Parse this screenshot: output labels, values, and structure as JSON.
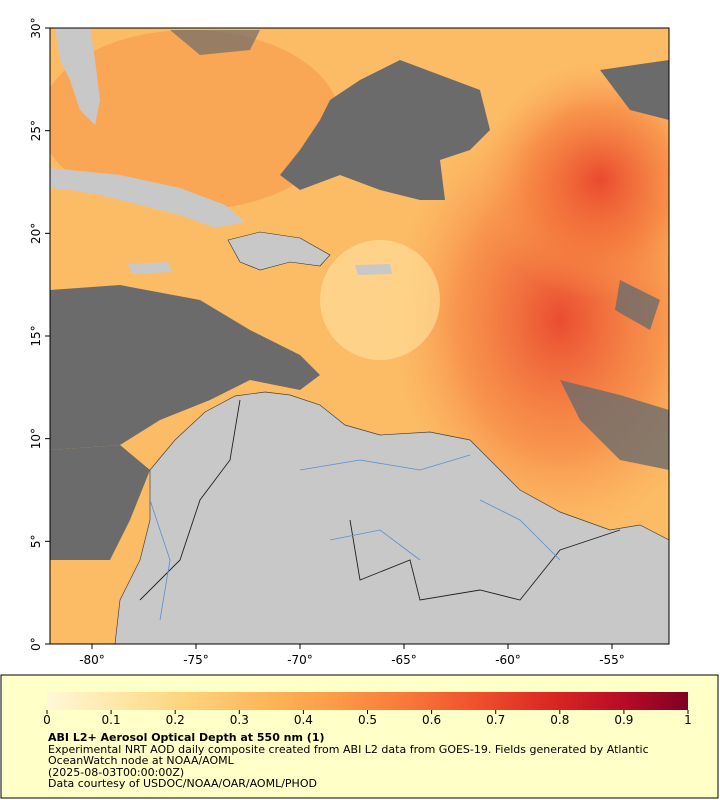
{
  "map": {
    "xlim": [
      -82.02,
      -52.26
    ],
    "ylim": [
      0,
      30
    ],
    "xticks": [
      {
        "value": -80,
        "label": "-80°"
      },
      {
        "value": -75,
        "label": "-75°"
      },
      {
        "value": -70,
        "label": "-70°"
      },
      {
        "value": -65,
        "label": "-65°"
      },
      {
        "value": -60,
        "label": "-60°"
      },
      {
        "value": -55,
        "label": "-55°"
      }
    ],
    "yticks": [
      {
        "value": 0,
        "label": "0°"
      },
      {
        "value": 5,
        "label": "5°"
      },
      {
        "value": 10,
        "label": "10°"
      },
      {
        "value": 15,
        "label": "15°"
      },
      {
        "value": 20,
        "label": "20°"
      },
      {
        "value": 25,
        "label": "25°"
      },
      {
        "value": 30,
        "label": "30°"
      }
    ]
  },
  "colorbar": {
    "lim": [
      0,
      1
    ],
    "ticks": [
      0,
      0.1,
      0.2,
      0.3,
      0.4,
      0.5,
      0.6,
      0.7,
      0.8,
      0.9,
      1
    ],
    "colors": [
      "#fff8d8",
      "#ffe7a8",
      "#fed27a",
      "#fdb85c",
      "#fc9c48",
      "#f97a3a",
      "#f0522c",
      "#dd2a22",
      "#bd0d26",
      "#800026"
    ]
  },
  "caption": {
    "title": "ABI L2+ Aerosol Optical Depth at 550 nm (1)",
    "description": "Experimental NRT AOD daily composite created from ABI L2 data from GOES-19. Fields generated by Atlantic OceanWatch node at NOAA/AOML",
    "date": "(2025-08-03T00:00:00Z)",
    "credit": "Data courtesy of USDOC/NOAA/OAR/AOML/PHOD"
  }
}
